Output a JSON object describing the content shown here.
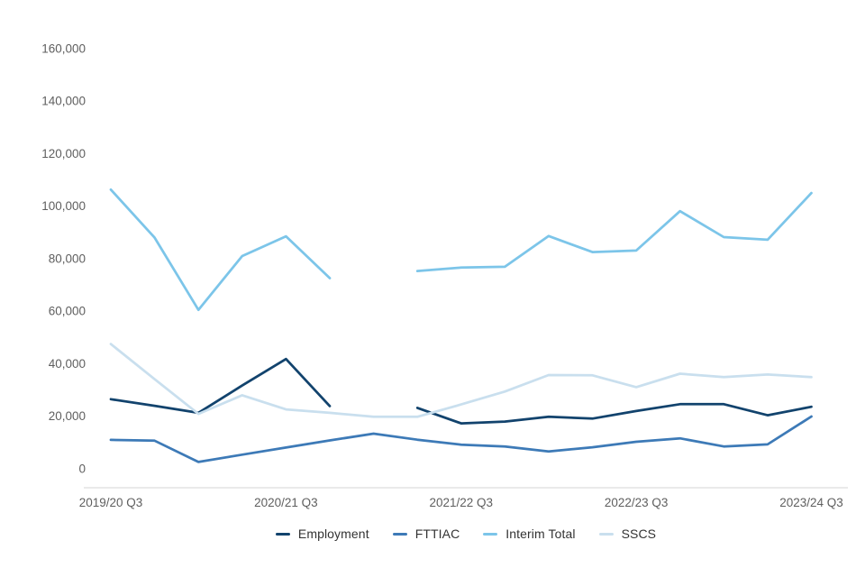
{
  "chart_data": {
    "type": "line",
    "title": "",
    "xlabel": "",
    "ylabel": "",
    "ylim": [
      0,
      160000
    ],
    "y_tick_step": 20000,
    "y_tick_labels": [
      "0",
      "20,000",
      "40,000",
      "60,000",
      "80,000",
      "100,000",
      "120,000",
      "140,000",
      "160,000"
    ],
    "x_tick_labels": [
      "2019/20 Q3",
      "2020/21 Q3",
      "2021/22 Q3",
      "2022/23 Q3",
      "2023/24 Q3"
    ],
    "grid": false,
    "legend_position": "bottom-center",
    "categories": [
      "2019/20 Q3",
      "2019/20 Q4",
      "2020/21 Q1",
      "2020/21 Q2",
      "2020/21 Q3",
      "2020/21 Q4",
      "2021/22 Q1",
      "2021/22 Q2",
      "2021/22 Q3",
      "2021/22 Q4",
      "2022/23 Q1",
      "2022/23 Q2",
      "2022/23 Q3",
      "2022/23 Q4",
      "2023/24 Q1",
      "2023/24 Q2",
      "2023/24 Q3"
    ],
    "series": [
      {
        "name": "Employment",
        "color": "#12436D",
        "values": [
          26500,
          24000,
          21300,
          31700,
          41800,
          23900,
          null,
          23200,
          17300,
          18000,
          19800,
          19100,
          22000,
          24600,
          24600,
          20400,
          23600
        ]
      },
      {
        "name": "FTTIAC",
        "color": "#3D7AB7",
        "values": [
          11000,
          10700,
          2600,
          5400,
          8100,
          10800,
          13400,
          11100,
          9200,
          8500,
          6600,
          8200,
          10300,
          11600,
          8500,
          9300,
          19900
        ]
      },
      {
        "name": "Interim Total",
        "color": "#7CC5E9",
        "values": [
          106300,
          88000,
          60500,
          81000,
          88500,
          72600,
          null,
          75300,
          76600,
          76900,
          88600,
          82500,
          83100,
          98100,
          88200,
          87200,
          105000
        ]
      },
      {
        "name": "SSCS",
        "color": "#C9DFEE",
        "values": [
          47500,
          34100,
          20900,
          28000,
          22600,
          21300,
          19800,
          19800,
          24500,
          29400,
          35700,
          35600,
          31100,
          36200,
          34900,
          35900,
          34900
        ]
      }
    ],
    "axis_color": "#d6d6d6",
    "tick_label_color": "#5f5f5f"
  }
}
